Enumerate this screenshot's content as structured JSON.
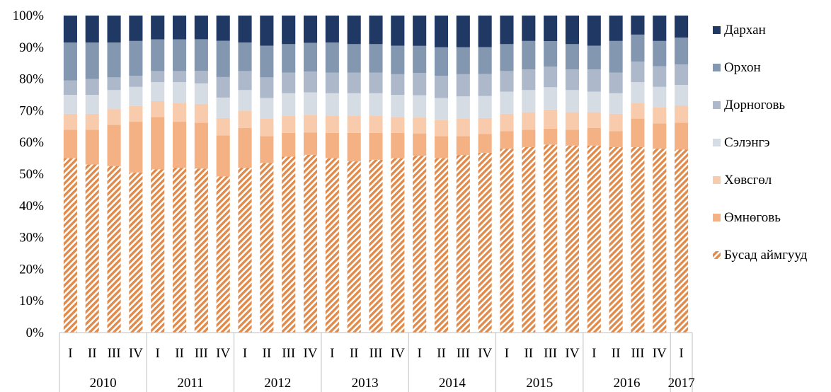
{
  "chart_data": {
    "type": "bar",
    "stacked": true,
    "percent": true,
    "quarter_labels": [
      "I",
      "II",
      "III",
      "IV",
      "I",
      "II",
      "III",
      "IV",
      "I",
      "II",
      "III",
      "IV",
      "I",
      "II",
      "III",
      "IV",
      "I",
      "II",
      "III",
      "IV",
      "I",
      "II",
      "III",
      "IV",
      "I",
      "II",
      "III",
      "IV",
      "I"
    ],
    "years": [
      {
        "label": "2010",
        "quarters": 4
      },
      {
        "label": "2011",
        "quarters": 4
      },
      {
        "label": "2012",
        "quarters": 4
      },
      {
        "label": "2013",
        "quarters": 4
      },
      {
        "label": "2014",
        "quarters": 4
      },
      {
        "label": "2015",
        "quarters": 4
      },
      {
        "label": "2016",
        "quarters": 4
      },
      {
        "label": "2017",
        "quarters": 1
      }
    ],
    "y_ticks": [
      "0%",
      "10%",
      "20%",
      "30%",
      "40%",
      "50%",
      "60%",
      "70%",
      "80%",
      "90%",
      "100%"
    ],
    "ylim": [
      0,
      100
    ],
    "legend_position": "right",
    "series": [
      {
        "name": "Бусад аймгууд",
        "color": "#E08A4B",
        "pattern": "diagonal-stripes",
        "values": [
          55,
          53,
          52.5,
          50.5,
          51.5,
          52,
          52,
          49.5,
          52,
          53.5,
          55.5,
          55.5,
          55,
          54,
          54.5,
          55,
          55.5,
          55,
          56,
          57,
          58,
          58.5,
          59,
          59,
          59,
          58.5,
          58.5,
          58,
          58
        ]
      },
      {
        "name": "Өмнөговь",
        "color": "#F4B183",
        "values": [
          9,
          11,
          13,
          16,
          16.5,
          14.5,
          14.5,
          13,
          12.5,
          8.5,
          7.5,
          7,
          8,
          9,
          8.5,
          8,
          7,
          7,
          6,
          6,
          5.5,
          5.5,
          5,
          5,
          5.5,
          5,
          9,
          8,
          8.5
        ]
      },
      {
        "name": "Хөвсгөл",
        "color": "#F8CBAD",
        "values": [
          5,
          5,
          5,
          5,
          5,
          6,
          6,
          5.5,
          5.5,
          5.5,
          5.5,
          5.5,
          5.5,
          5.5,
          5.5,
          5,
          5,
          5,
          5.5,
          5,
          5.5,
          5.5,
          6,
          5.5,
          5,
          5.5,
          5,
          5,
          5.5
        ]
      },
      {
        "name": "Сэлэнгэ",
        "color": "#D6DCE4",
        "values": [
          6,
          6,
          6,
          6,
          6,
          6.5,
          6.5,
          6.5,
          6.5,
          6.5,
          7,
          7,
          7,
          7,
          7,
          7,
          7,
          7,
          7,
          7,
          7,
          7,
          7,
          7,
          6.5,
          6.5,
          6.5,
          6.5,
          6.5
        ]
      },
      {
        "name": "Дорноговь",
        "color": "#ADB9CA",
        "values": [
          4.5,
          5,
          4,
          3.5,
          3.5,
          3.5,
          4,
          6.5,
          6,
          6.5,
          6.5,
          6.5,
          6.5,
          6.5,
          6.5,
          6.5,
          7,
          7,
          7,
          7,
          6.5,
          6.5,
          6.5,
          6.5,
          7,
          6.5,
          6.5,
          6.5,
          6.5
        ]
      },
      {
        "name": "Орхон",
        "color": "#8497B0",
        "values": [
          12,
          11.5,
          11,
          11,
          10,
          10,
          10,
          11.5,
          9,
          10,
          9,
          9,
          9.5,
          9,
          9,
          9,
          8.5,
          9,
          8.5,
          8.5,
          8.5,
          9,
          8,
          8,
          7.5,
          10,
          8.5,
          8,
          8.5
        ]
      },
      {
        "name": "Дархан",
        "color": "#203864",
        "values": [
          8.5,
          8.5,
          8.5,
          8,
          7.5,
          7.5,
          7.5,
          8,
          8.5,
          9.5,
          9,
          8.5,
          8.5,
          9,
          9,
          9.5,
          9.5,
          10,
          10,
          10,
          9,
          8,
          8,
          9,
          9.5,
          8,
          6,
          8,
          7
        ]
      }
    ]
  }
}
